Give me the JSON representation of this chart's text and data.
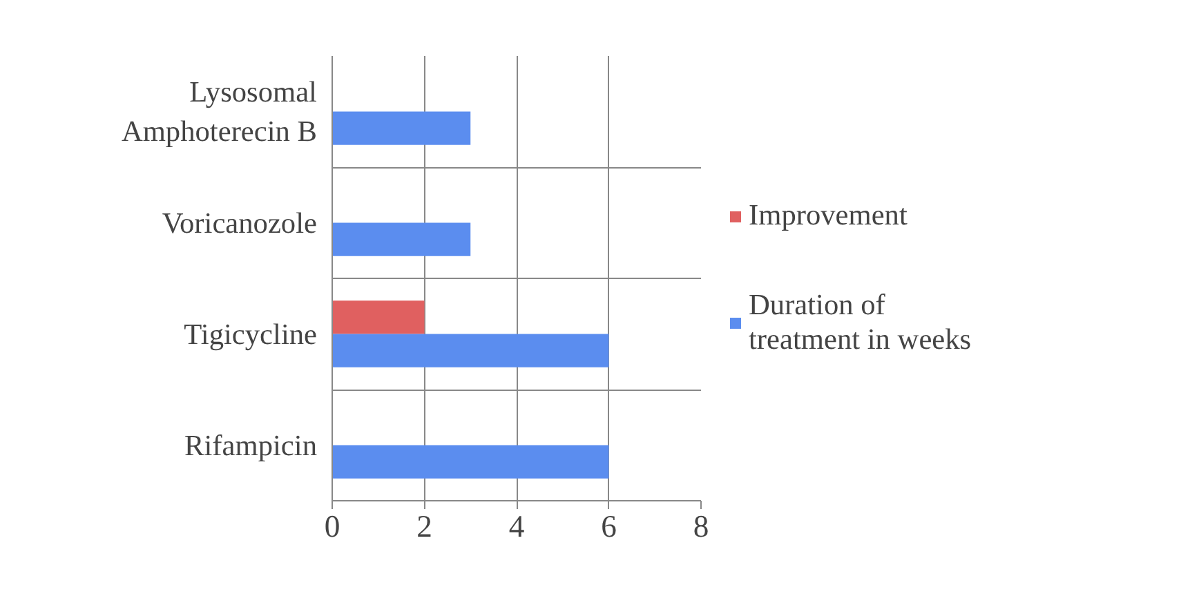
{
  "chart_data": {
    "type": "bar",
    "orientation": "horizontal",
    "categories": [
      "Lysosomal Amphoterecin B",
      "Voricanozole",
      "Tigicycline",
      "Rifampicin"
    ],
    "series": [
      {
        "name": "Improvement",
        "color": "#e06060",
        "values": [
          null,
          null,
          2,
          null
        ]
      },
      {
        "name": "Duration of treatment in weeks",
        "color": "#5b8def",
        "values": [
          3,
          3,
          6,
          6
        ]
      }
    ],
    "xlim": [
      0,
      8
    ],
    "xticks": [
      0,
      2,
      4,
      6,
      8
    ],
    "grid": true,
    "legend": "right"
  }
}
